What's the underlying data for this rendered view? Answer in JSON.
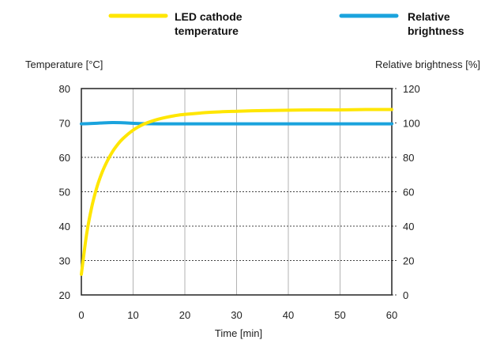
{
  "chart_data": {
    "type": "line",
    "title": "",
    "xlabel": "Time [min]",
    "ylabel_left": "Temperature [°C]",
    "ylabel_right": "Relative brightness [%]",
    "xlim": [
      0,
      60
    ],
    "ylim_left": [
      20,
      80
    ],
    "ylim_right": [
      0,
      120
    ],
    "x_ticks": [
      "0",
      "10",
      "20",
      "30",
      "40",
      "50",
      "60"
    ],
    "y_left_ticks": [
      "20",
      "30",
      "40",
      "50",
      "60",
      "70",
      "80"
    ],
    "y_right_ticks": [
      "0",
      "20",
      "40",
      "60",
      "80",
      "100",
      "120"
    ],
    "grid": true,
    "legend_position": "top",
    "series": [
      {
        "name": "LED cathode temperature",
        "axis": "left",
        "color": "#ffe600",
        "x": [
          0,
          1,
          2,
          3,
          4,
          5,
          6,
          7,
          8,
          10,
          12,
          14,
          16,
          18,
          20,
          25,
          30,
          35,
          40,
          45,
          50,
          55,
          60
        ],
        "y": [
          26,
          37.5,
          45.5,
          51.3,
          55.6,
          58.9,
          61.6,
          63.7,
          65.4,
          67.9,
          69.6,
          70.7,
          71.5,
          72.1,
          72.5,
          73.1,
          73.4,
          73.6,
          73.7,
          73.8,
          73.8,
          73.9,
          73.9
        ]
      },
      {
        "name": "Relative brightness",
        "axis": "right",
        "color": "#1aa3dd",
        "x": [
          0,
          2,
          4,
          6,
          8,
          10,
          12,
          15,
          20,
          30,
          40,
          50,
          60
        ],
        "y": [
          99.5,
          99.7,
          100,
          100.2,
          100.1,
          99.8,
          99.6,
          99.5,
          99.5,
          99.5,
          99.5,
          99.5,
          99.5
        ]
      }
    ]
  }
}
